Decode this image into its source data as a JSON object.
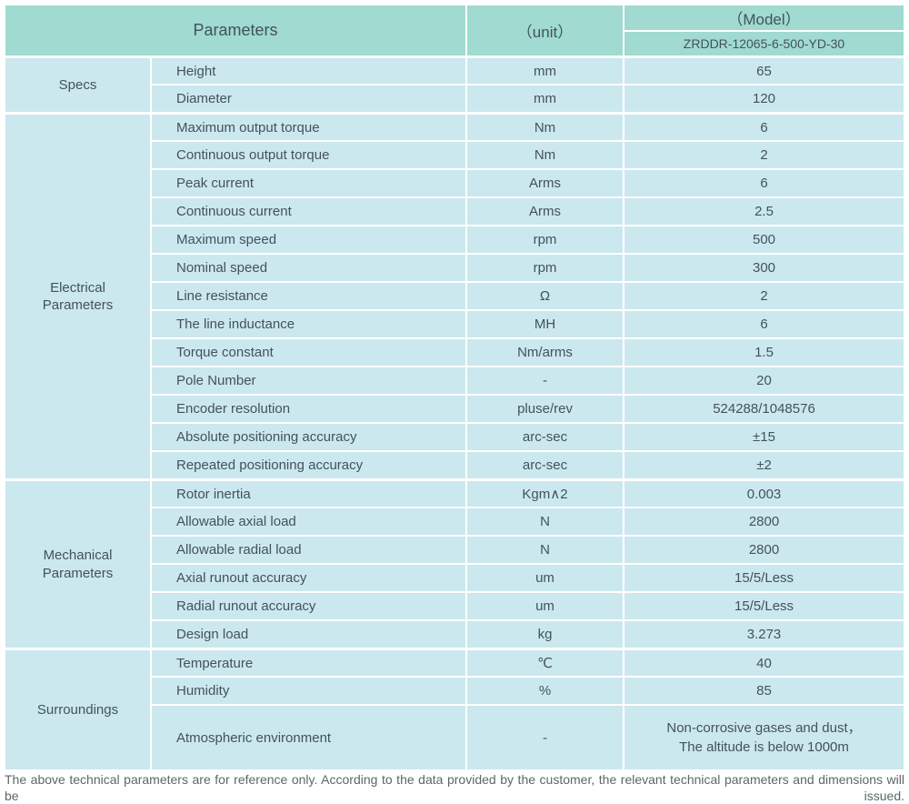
{
  "header": {
    "parameters_label": "Parameters",
    "unit_label": "（unit）",
    "model_label": "（Model）",
    "model_value": "ZRDDR-12065-6-500-YD-30"
  },
  "sections": [
    {
      "name": "Specs",
      "rows": [
        {
          "param": "Height",
          "unit": "mm",
          "value": "65"
        },
        {
          "param": "Diameter",
          "unit": "mm",
          "value": "120"
        }
      ]
    },
    {
      "name": "Electrical\nParameters",
      "rows": [
        {
          "param": "Maximum output torque",
          "unit": "Nm",
          "value": "6"
        },
        {
          "param": "Continuous output torque",
          "unit": "Nm",
          "value": "2"
        },
        {
          "param": "Peak current",
          "unit": "Arms",
          "value": "6"
        },
        {
          "param": "Continuous current",
          "unit": "Arms",
          "value": "2.5"
        },
        {
          "param": "Maximum speed",
          "unit": "rpm",
          "value": "500"
        },
        {
          "param": "Nominal speed",
          "unit": "rpm",
          "value": "300"
        },
        {
          "param": "Line resistance",
          "unit": "Ω",
          "value": "2"
        },
        {
          "param": "The line inductance",
          "unit": "MH",
          "value": "6"
        },
        {
          "param": "Torque constant",
          "unit": "Nm/arms",
          "value": "1.5"
        },
        {
          "param": "Pole Number",
          "unit": "-",
          "value": "20"
        },
        {
          "param": "Encoder resolution",
          "unit": "pluse/rev",
          "value": "524288/1048576"
        },
        {
          "param": "Absolute positioning accuracy",
          "unit": "arc-sec",
          "value": "±15"
        },
        {
          "param": "Repeated positioning accuracy",
          "unit": "arc-sec",
          "value": "±2"
        }
      ]
    },
    {
      "name": "Mechanical\nParameters",
      "rows": [
        {
          "param": "Rotor inertia",
          "unit": "Kgm∧2",
          "value": "0.003"
        },
        {
          "param": "Allowable axial load",
          "unit": "N",
          "value": "2800"
        },
        {
          "param": "Allowable radial load",
          "unit": "N",
          "value": "2800"
        },
        {
          "param": "Axial runout accuracy",
          "unit": "um",
          "value": "15/5/Less"
        },
        {
          "param": "Radial runout accuracy",
          "unit": "um",
          "value": "15/5/Less"
        },
        {
          "param": "Design load",
          "unit": "kg",
          "value": "3.273"
        }
      ]
    },
    {
      "name": "Surroundings",
      "rows": [
        {
          "param": "Temperature",
          "unit": "℃",
          "value": "40"
        },
        {
          "param": "Humidity",
          "unit": "%",
          "value": "85"
        },
        {
          "param": "Atmospheric environment",
          "unit": "-",
          "value": "Non-corrosive gases and dust，\nThe altitude is below 1000m",
          "tall": true
        }
      ]
    }
  ],
  "footer": {
    "note": "The above technical parameters are for reference only. According to the data provided by the customer, the relevant technical parameters and dimensions will be issued."
  },
  "colors": {
    "header_teal": "#a0dad1",
    "row_blue": "#cbe8ee",
    "table_text": "#43525a",
    "footer_text": "#5c6668"
  }
}
